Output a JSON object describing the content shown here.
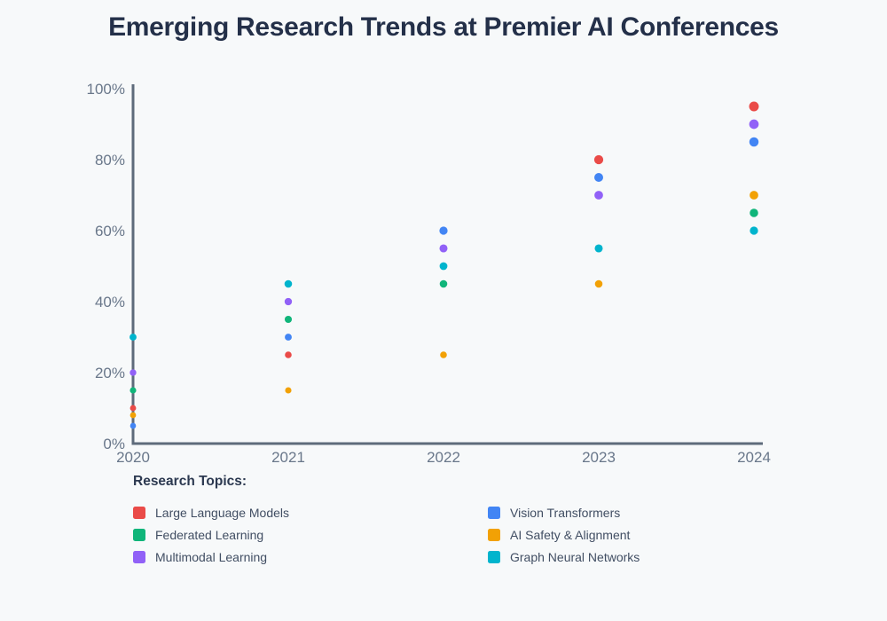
{
  "chart_data": {
    "type": "scatter",
    "title": "Emerging Research Trends at Premier AI Conferences",
    "x": [
      2020,
      2021,
      2022,
      2023,
      2024
    ],
    "x_tick_labels": [
      "2020",
      "2021",
      "2022",
      "2023",
      "2024"
    ],
    "y_ticks": [
      0,
      20,
      40,
      60,
      80,
      100
    ],
    "y_tick_labels": [
      "0%",
      "20%",
      "40%",
      "60%",
      "80%",
      "100%"
    ],
    "ylim": [
      0,
      100
    ],
    "grid": false,
    "legend_title": "Research Topics:",
    "legend_position": "bottom",
    "axis_color": "#5e6b7b",
    "tick_label_color": "#69778a",
    "series": [
      {
        "name": "Large Language Models",
        "color": "#ea4b48",
        "values": [
          10,
          25,
          null,
          80,
          95
        ]
      },
      {
        "name": "Vision Transformers",
        "color": "#4285f4",
        "values": [
          5,
          30,
          60,
          75,
          85
        ]
      },
      {
        "name": "Federated Learning",
        "color": "#10b57a",
        "values": [
          15,
          35,
          45,
          null,
          65
        ]
      },
      {
        "name": "AI Safety & Alignment",
        "color": "#f2a105",
        "values": [
          8,
          15,
          25,
          45,
          70
        ]
      },
      {
        "name": "Multimodal Learning",
        "color": "#9161f7",
        "values": [
          20,
          40,
          55,
          70,
          90
        ]
      },
      {
        "name": "Graph Neural Networks",
        "color": "#00b4cd",
        "values": [
          30,
          45,
          50,
          55,
          60
        ]
      }
    ]
  }
}
